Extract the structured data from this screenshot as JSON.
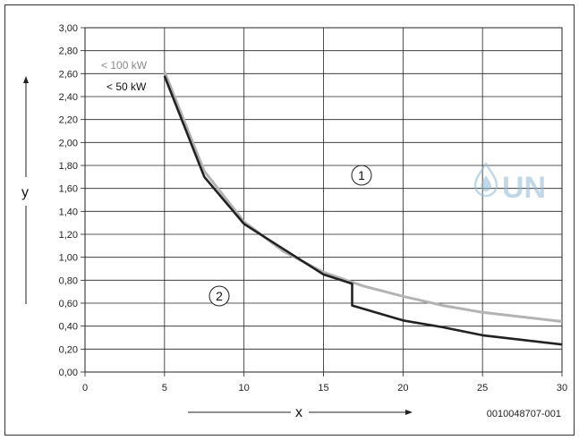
{
  "chart_data": {
    "type": "line",
    "xlabel": "x",
    "ylabel": "y",
    "xlim": [
      0,
      30
    ],
    "ylim": [
      0,
      3.0
    ],
    "x_ticks": [
      "0",
      "5",
      "10",
      "15",
      "20",
      "25",
      "30"
    ],
    "y_ticks": [
      "0,00",
      "0,20",
      "0,40",
      "0,60",
      "0,80",
      "1,00",
      "1,20",
      "1,40",
      "1,60",
      "1,80",
      "2,00",
      "2,20",
      "2,40",
      "2,60",
      "2,80",
      "3,00"
    ],
    "grid": true,
    "series": [
      {
        "name": "< 100 kW",
        "color": "#b3b3b3",
        "x": [
          5,
          7.5,
          10,
          12.5,
          15,
          17.5,
          20,
          22.5,
          25,
          27.5,
          30
        ],
        "y": [
          2.62,
          1.75,
          1.31,
          1.05,
          0.87,
          0.75,
          0.66,
          0.58,
          0.52,
          0.48,
          0.44
        ]
      },
      {
        "name": "< 50 kW",
        "color": "#222222",
        "x": [
          5,
          7.5,
          10,
          12.5,
          15,
          16.8,
          16.8,
          20,
          22.5,
          25,
          27.5,
          30
        ],
        "y": [
          2.58,
          1.7,
          1.29,
          1.07,
          0.85,
          0.77,
          0.58,
          0.45,
          0.39,
          0.32,
          0.28,
          0.24
        ]
      }
    ],
    "annotations": {
      "region1": "1",
      "region2": "2"
    }
  },
  "figure_code": "0010048707-001",
  "watermark": "UN"
}
